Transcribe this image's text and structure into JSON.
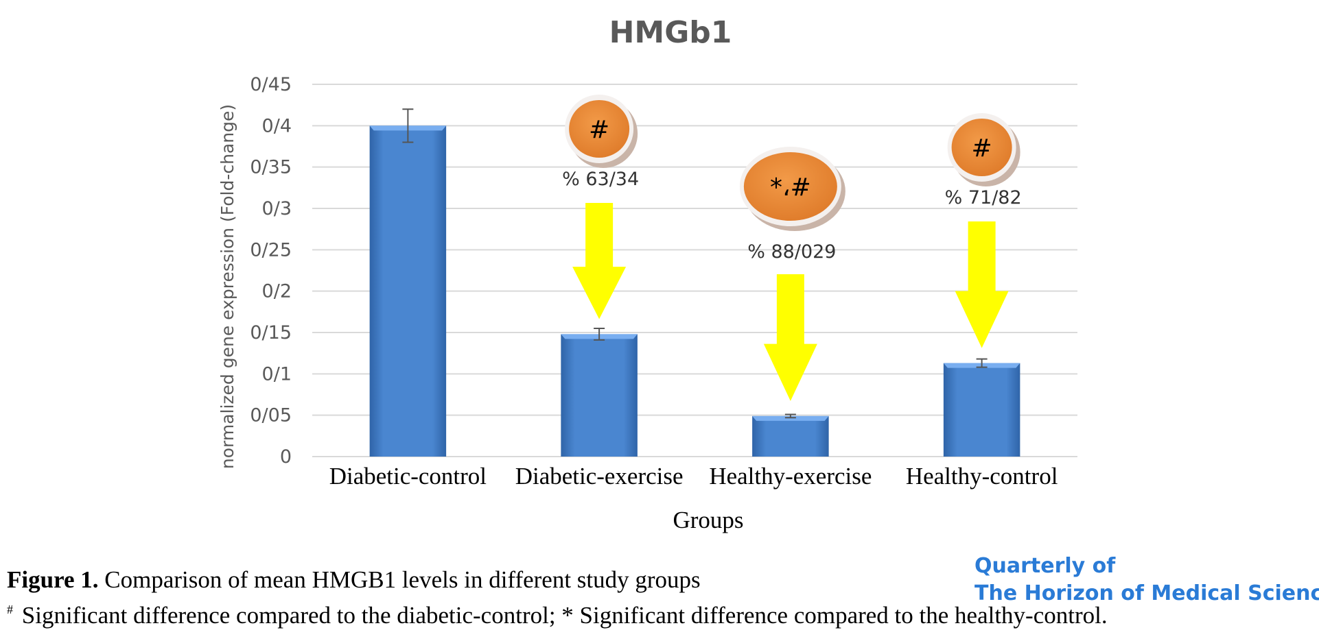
{
  "chart_data": {
    "type": "bar",
    "title": "HMGb1",
    "ylabel": "normalized gene expression (Fold-change)",
    "xlabel": "Groups",
    "categories": [
      "Diabetic-control",
      "Diabetic-exercise",
      "Healthy-exercise",
      "Healthy-control"
    ],
    "values": [
      0.4,
      0.148,
      0.049,
      0.113
    ],
    "errors": [
      0.02,
      0.007,
      0.002,
      0.005
    ],
    "ylim": [
      0,
      0.45
    ],
    "yticks": [
      0,
      0.05,
      0.1,
      0.15,
      0.2,
      0.25,
      0.3,
      0.35,
      0.4,
      0.45
    ],
    "ytick_labels": [
      "0",
      "0/05",
      "0/1",
      "0/15",
      "0/2",
      "0/25",
      "0/3",
      "0/35",
      "0/4",
      "0/45"
    ],
    "grid": true,
    "bar_color": "#4a86d0",
    "annotations": [
      {
        "category": "Diabetic-exercise",
        "percent_label": "% 63/34",
        "marker": "#"
      },
      {
        "category": "Healthy-exercise",
        "percent_label": "% 88/029",
        "marker": "*،#"
      },
      {
        "category": "Healthy-control",
        "percent_label": "% 71/82",
        "marker": "#"
      }
    ],
    "colors": {
      "marker_fill": "#ee8a3a",
      "arrow": "#ffff00"
    }
  },
  "caption": {
    "figure_label": "Figure 1.",
    "figure_text": " Comparison of mean HMGB1 levels in different study groups",
    "note_symbol": "#",
    "note_text": " Significant difference compared to the diabetic-control; * Significant difference compared to the healthy-control."
  },
  "journal": {
    "line1": "Quarterly of",
    "line2": "The Horizon of Medical Sciences"
  }
}
